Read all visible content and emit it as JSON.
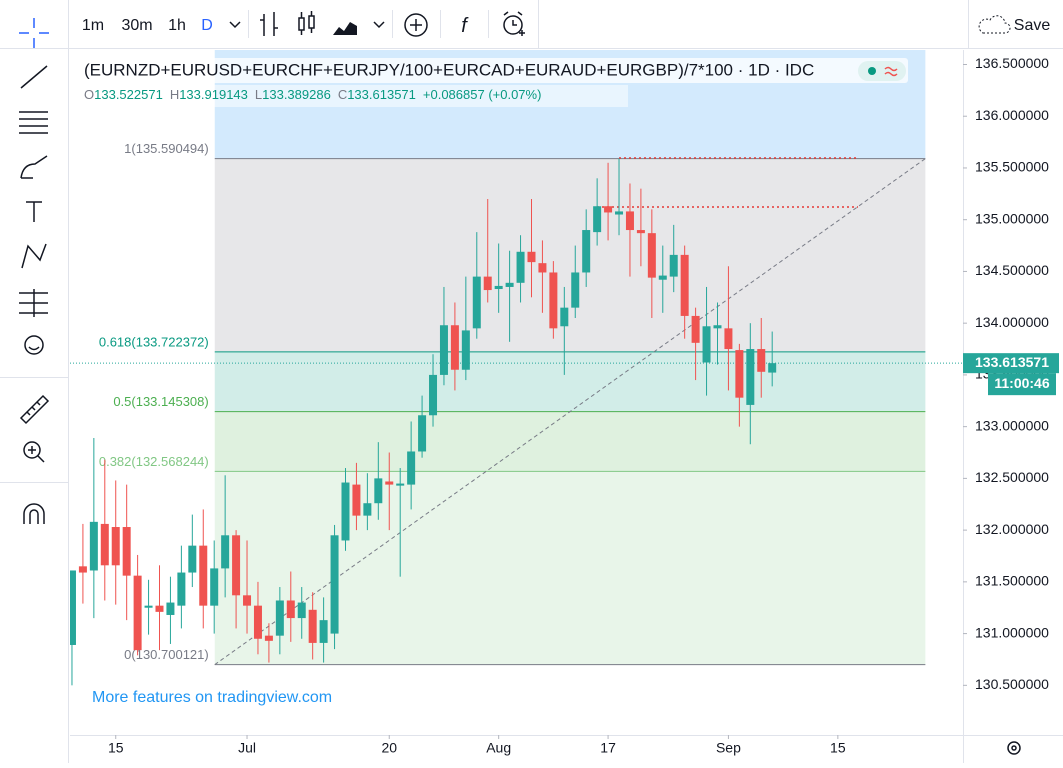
{
  "toolbar": {
    "intervals": [
      "1m",
      "30m",
      "1h",
      "D"
    ],
    "save": "Save"
  },
  "legend": {
    "symbol": "(EURNZD+EURUSD+EURCHF+EURJPY/100+EURCAD+EURAUD+EURGBP)/7*100 · 1D · IDC",
    "ohlc": [
      {
        "key": "O",
        "value": "133.522571"
      },
      {
        "key": "H",
        "value": "133.919143"
      },
      {
        "key": "L",
        "value": "133.389286"
      },
      {
        "key": "C",
        "value": "133.613571"
      }
    ],
    "change": "+0.086857 (+0.07%)"
  },
  "watermark": "More features on tradingview.com",
  "chart_data": {
    "type": "candlestick",
    "x": [
      0,
      1,
      2,
      3,
      4,
      5,
      6,
      7,
      8,
      9,
      10,
      11,
      12,
      13,
      14,
      15,
      16,
      17,
      18,
      19,
      20,
      21,
      22,
      23,
      24,
      25,
      26,
      27,
      28,
      29,
      30,
      31,
      32,
      33,
      34,
      35,
      36,
      37,
      38,
      39,
      40,
      41,
      42,
      43,
      44,
      45,
      46,
      47,
      48,
      49,
      50,
      51,
      52,
      53,
      54,
      55,
      56,
      57,
      58,
      59,
      60,
      61,
      62,
      63,
      64
    ],
    "open": [
      130.89,
      131.65,
      131.61,
      132.06,
      132.03,
      132.03,
      131.56,
      131.25,
      131.27,
      131.18,
      131.27,
      131.59,
      131.85,
      131.27,
      131.63,
      131.95,
      131.37,
      131.27,
      130.98,
      130.98,
      131.32,
      131.15,
      131.23,
      130.91,
      131.0,
      131.9,
      132.44,
      132.14,
      132.26,
      132.47,
      132.43,
      132.44,
      132.76,
      133.11,
      133.5,
      133.98,
      133.55,
      133.95,
      134.45,
      134.33,
      134.35,
      134.39,
      134.69,
      134.58,
      134.49,
      133.97,
      134.15,
      134.49,
      134.88,
      135.13,
      135.05,
      135.08,
      134.9,
      134.87,
      134.42,
      134.45,
      134.66,
      134.07,
      133.62,
      133.95,
      133.95,
      133.74,
      133.21,
      133.75,
      133.522571
    ],
    "high": [
      131.61,
      132.06,
      132.89,
      132.68,
      132.48,
      132.44,
      131.76,
      131.52,
      131.66,
      131.55,
      131.85,
      132.15,
      132.2,
      131.9,
      132.53,
      132.0,
      131.9,
      131.5,
      131.1,
      131.45,
      131.6,
      131.45,
      131.4,
      131.35,
      132.05,
      132.6,
      132.65,
      132.55,
      132.85,
      132.75,
      132.6,
      133.05,
      133.3,
      133.7,
      134.35,
      134.2,
      134.45,
      134.88,
      135.2,
      134.77,
      134.7,
      134.85,
      135.2,
      134.8,
      134.6,
      134.35,
      134.75,
      135.1,
      135.4,
      135.55,
      135.590494,
      135.35,
      135.3,
      135.1,
      134.75,
      134.95,
      134.75,
      134.15,
      134.35,
      134.2,
      134.55,
      133.8,
      134.0,
      134.05,
      133.919143
    ],
    "low": [
      130.5,
      131.29,
      131.15,
      131.32,
      131.28,
      131.13,
      130.79,
      130.99,
      130.84,
      130.9,
      131.05,
      131.45,
      131.05,
      131.0,
      131.35,
      131.05,
      131.0,
      130.8,
      130.72,
      130.8,
      130.92,
      130.95,
      130.75,
      130.72,
      130.85,
      131.8,
      132.0,
      132.0,
      132.1,
      132.0,
      131.55,
      132.2,
      132.7,
      133.0,
      133.4,
      133.35,
      133.45,
      133.85,
      134.2,
      134.1,
      133.82,
      134.2,
      134.25,
      134.1,
      133.85,
      133.5,
      134.05,
      134.35,
      134.75,
      134.8,
      134.85,
      134.45,
      134.55,
      134.05,
      134.1,
      134.3,
      133.85,
      133.45,
      133.3,
      133.6,
      133.35,
      133.0,
      132.83,
      133.28,
      133.389286
    ],
    "close": [
      131.61,
      131.59,
      132.08,
      131.66,
      131.66,
      131.56,
      130.84,
      131.27,
      131.21,
      131.3,
      131.59,
      131.85,
      131.27,
      131.63,
      131.95,
      131.37,
      131.27,
      130.95,
      130.93,
      131.32,
      131.15,
      131.3,
      130.91,
      131.13,
      131.95,
      132.46,
      132.14,
      132.26,
      132.5,
      132.44,
      132.45,
      132.76,
      133.11,
      133.5,
      133.98,
      133.55,
      133.93,
      134.45,
      134.32,
      134.36,
      134.39,
      134.69,
      134.59,
      134.49,
      133.95,
      134.15,
      134.49,
      134.9,
      135.13,
      135.07,
      135.08,
      134.9,
      134.87,
      134.44,
      134.46,
      134.66,
      134.07,
      133.81,
      133.97,
      133.98,
      133.75,
      133.28,
      133.75,
      133.53,
      133.613571
    ],
    "up_color": "#26a69a",
    "down_color": "#ef5350",
    "xlim": [
      -0.18,
      81.44
    ],
    "xticks": [
      {
        "value": 4,
        "label": "15"
      },
      {
        "value": 16,
        "label": "Jul"
      },
      {
        "value": 29,
        "label": "20"
      },
      {
        "value": 39,
        "label": "Aug"
      },
      {
        "value": 49,
        "label": "17"
      },
      {
        "value": 60,
        "label": "Sep"
      },
      {
        "value": 70,
        "label": "15"
      }
    ],
    "ylim": [
      130.02,
      136.64
    ],
    "yticks": [
      {
        "value": 130.5,
        "label": "130.500000"
      },
      {
        "value": 131,
        "label": "131.000000"
      },
      {
        "value": 131.5,
        "label": "131.500000"
      },
      {
        "value": 132,
        "label": "132.000000"
      },
      {
        "value": 132.5,
        "label": "132.500000"
      },
      {
        "value": 133,
        "label": "133.000000"
      },
      {
        "value": 133.5,
        "label": "133.500000"
      },
      {
        "value": 134,
        "label": "134.000000"
      },
      {
        "value": 134.5,
        "label": "134.500000"
      },
      {
        "value": 135,
        "label": "135.000000"
      },
      {
        "value": 135.5,
        "label": "135.500000"
      },
      {
        "value": 136,
        "label": "136.000000"
      },
      {
        "value": 136.5,
        "label": "136.500000"
      }
    ],
    "last_price": 133.613571,
    "countdown": "11:00:46",
    "fib_levels": [
      {
        "value": 135.590494,
        "label": "1(135.590494)",
        "color": "#787b86"
      },
      {
        "value": 133.722372,
        "label": "0.618(133.722372)",
        "color": "#089981"
      },
      {
        "value": 133.145308,
        "label": "0.5(133.145308)",
        "color": "#4caf50"
      },
      {
        "value": 132.568244,
        "label": "0.382(132.568244)",
        "color": "#81c784"
      },
      {
        "value": 130.700121,
        "label": "0(130.700121)",
        "color": "#787b86"
      }
    ]
  }
}
